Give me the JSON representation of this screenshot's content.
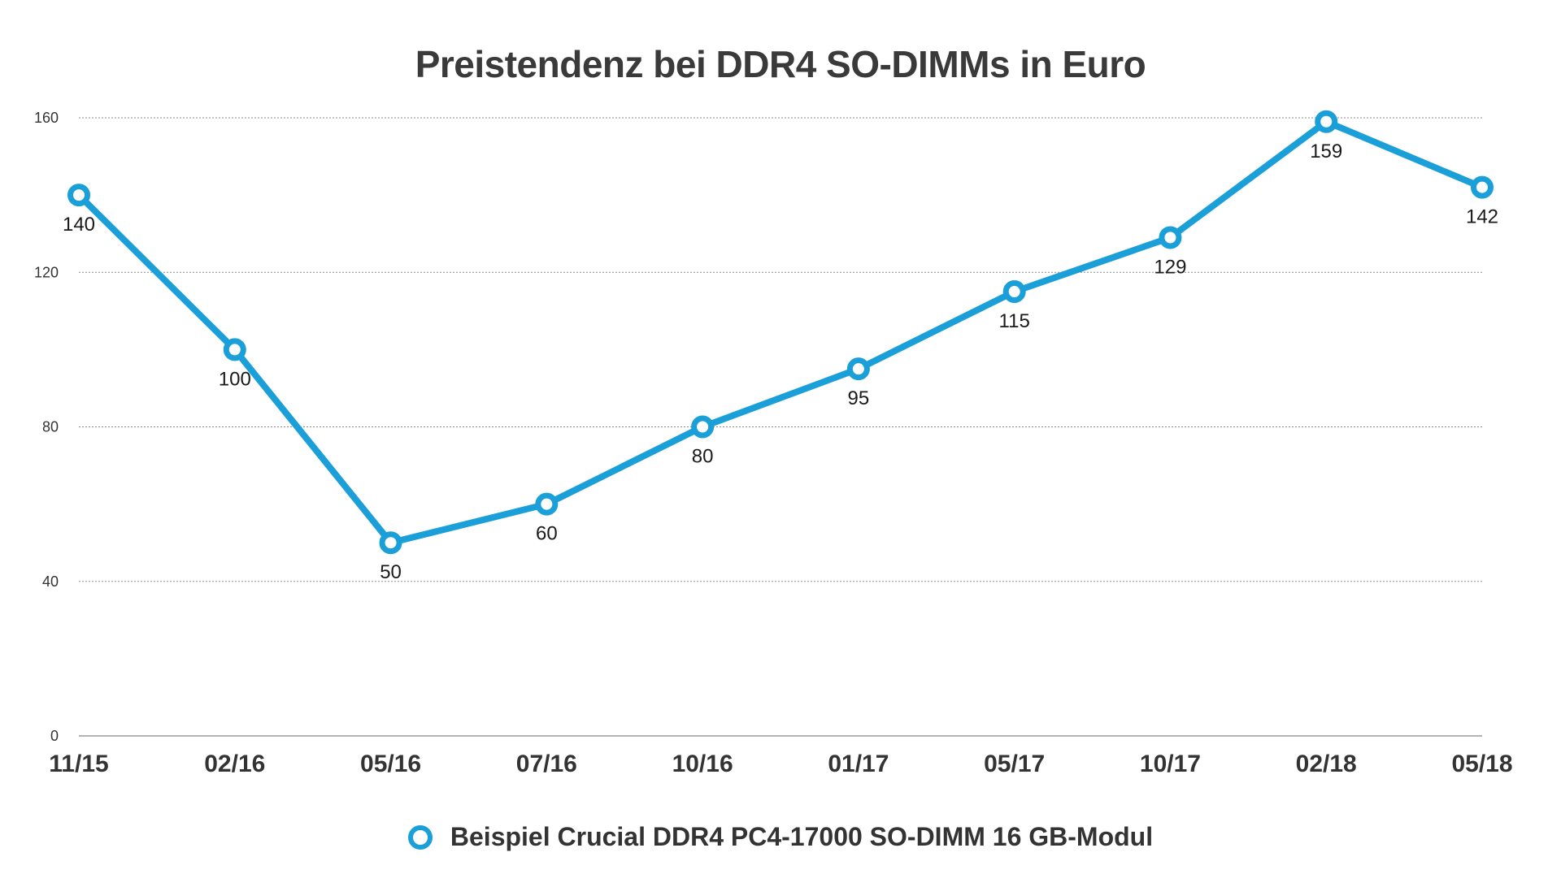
{
  "chart_data": {
    "type": "line",
    "title": "Preistendenz bei DDR4 SO-DIMMs in Euro",
    "xlabel": "",
    "ylabel": "",
    "categories": [
      "11/15",
      "02/16",
      "05/16",
      "07/16",
      "10/16",
      "01/17",
      "05/17",
      "10/17",
      "02/18",
      "05/18"
    ],
    "series": [
      {
        "name": "Beispiel Crucial DDR4 PC4-17000 SO-DIMM 16 GB-Modul",
        "values": [
          140,
          100,
          50,
          60,
          80,
          95,
          115,
          129,
          159,
          142
        ],
        "color": "#1a9fd8"
      }
    ],
    "ylim": [
      0,
      160
    ],
    "yticks": [
      0,
      40,
      80,
      120,
      160
    ],
    "grid": true,
    "legend": "bottom-center"
  }
}
